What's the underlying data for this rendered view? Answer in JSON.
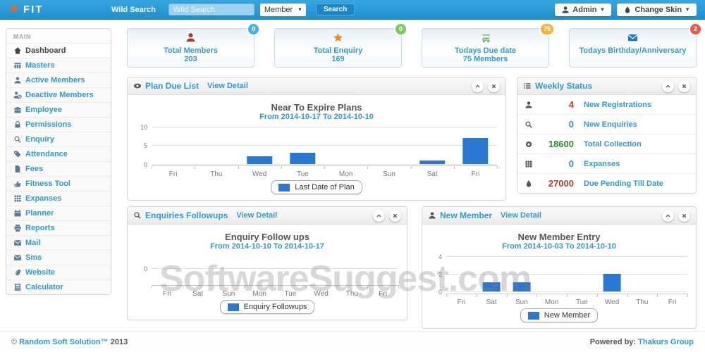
{
  "header": {
    "logo_text": "FIT",
    "search_label": "Wild Search",
    "search_placeholder": "Wild Search",
    "search_category": "Member",
    "search_button": "Search",
    "admin_label": "Admin",
    "change_skin_label": "Change Skin"
  },
  "sidebar": {
    "section": "MAIN",
    "items": [
      {
        "label": "Dashboard",
        "icon": "home-icon",
        "active": true
      },
      {
        "label": "Masters",
        "icon": "table-icon"
      },
      {
        "label": "Active Members",
        "icon": "user-icon"
      },
      {
        "label": "Deactive Members",
        "icon": "user-ban-icon"
      },
      {
        "label": "Employee",
        "icon": "briefcase-icon"
      },
      {
        "label": "Permissions",
        "icon": "lock-icon"
      },
      {
        "label": "Enquiry",
        "icon": "search-icon"
      },
      {
        "label": "Attendance",
        "icon": "tag-icon"
      },
      {
        "label": "Fees",
        "icon": "file-icon"
      },
      {
        "label": "Fitness Tool",
        "icon": "thumbs-up-icon"
      },
      {
        "label": "Expanses",
        "icon": "grid-icon"
      },
      {
        "label": "Planner",
        "icon": "calendar-icon"
      },
      {
        "label": "Reports",
        "icon": "printer-icon"
      },
      {
        "label": "Mail",
        "icon": "envelope-icon"
      },
      {
        "label": "Sms",
        "icon": "envelope-icon"
      },
      {
        "label": "Website",
        "icon": "leaf-icon"
      },
      {
        "label": "Calculator",
        "icon": "calculator-icon"
      }
    ]
  },
  "stats": [
    {
      "title": "Total Members",
      "value": "203",
      "badge": "0",
      "badge_color": "#45b2e4",
      "icon": "member-icon",
      "icon_color": "#a63a2e"
    },
    {
      "title": "Total Enquiry",
      "value": "169",
      "badge": "0",
      "badge_color": "#76cc58",
      "icon": "star-icon",
      "icon_color": "#f08a2c"
    },
    {
      "title": "Todays Due date",
      "value": "75 Members",
      "badge": "75",
      "badge_color": "#f3b13e",
      "icon": "cart-icon",
      "icon_color": "#3da23d"
    },
    {
      "title": "Todays Birthday/Anniversary",
      "value": "",
      "badge": "2",
      "badge_color": "#e25b4b",
      "icon": "envelope-icon",
      "icon_color": "#1d74d4"
    }
  ],
  "panels": {
    "plan_due": {
      "title": "Plan Due List",
      "link": "View Detail"
    },
    "weekly": {
      "title": "Weekly Status",
      "rows": [
        {
          "value": "4",
          "label": "New Registrations",
          "value_color": "#c0392b",
          "icon": "user-icon"
        },
        {
          "value": "0",
          "label": "New Enquiries",
          "value_color": "#3a87c8",
          "icon": "search-icon"
        },
        {
          "value": "18600",
          "label": "Total Collection",
          "value_color": "#2d8a2d",
          "icon": "cog-icon"
        },
        {
          "value": "0",
          "label": "Expanses",
          "value_color": "#3a87c8",
          "icon": "grid-icon"
        },
        {
          "value": "27000",
          "label": "Due Pending Till Date",
          "value_color": "#c0392b",
          "icon": "droplet-icon"
        }
      ]
    },
    "enquiries": {
      "title": "Enquiries Followups",
      "link": "View Detail"
    },
    "new_member": {
      "title": "New Member",
      "link": "View Detail"
    }
  },
  "chart_data": [
    {
      "id": "plan_due",
      "type": "bar",
      "title": "Near To Expire Plans",
      "subtitle": "From 2014-10-17 To 2014-10-10",
      "categories": [
        "Fri",
        "Thu",
        "Wed",
        "Tue",
        "Mon",
        "Sun",
        "Sat",
        "Fri"
      ],
      "values": [
        0,
        0,
        2,
        3,
        0,
        0,
        1,
        7
      ],
      "yticks": [
        0,
        5,
        10
      ],
      "ylim": [
        -0.4,
        10
      ],
      "legend": "Last Date of Plan",
      "legend_position": "bottom",
      "grid": true,
      "bar_color": "#2b78d3"
    },
    {
      "id": "enquiry_followups",
      "type": "bar",
      "title": "Enquiry Follow ups",
      "subtitle": "From 2014-10-10 To 2014-10-17",
      "categories": [
        "Fri",
        "Sat",
        "Sun",
        "Mon",
        "Tue",
        "Wed",
        "Thu",
        "Fri"
      ],
      "values": [
        0,
        0,
        0,
        0,
        0,
        0,
        0,
        0
      ],
      "yticks": [
        0
      ],
      "ylim": [
        -1,
        0.7
      ],
      "legend": "Enquiry Followups",
      "legend_position": "bottom",
      "grid": true,
      "bar_color": "#2b78d3"
    },
    {
      "id": "new_member",
      "type": "bar",
      "title": "New Member Entry",
      "subtitle": "From 2014-10-03 To 2014-10-10",
      "categories": [
        "Fri",
        "Sat",
        "Sun",
        "Mon",
        "Tue",
        "Wed",
        "Thu",
        "Fri"
      ],
      "values": [
        0,
        1,
        1,
        0,
        0,
        2,
        0,
        0
      ],
      "yticks": [
        0,
        2,
        4
      ],
      "ylim": [
        -0.25,
        4
      ],
      "legend": "New Member",
      "legend_position": "bottom",
      "grid": true,
      "bar_color": "#2b78d3"
    }
  ],
  "footer": {
    "copyright_symbol": "©",
    "company": "Random Soft Solution™",
    "year": "2013",
    "powered_label": "Powered by:",
    "powered_company": "Thakurs Group"
  },
  "watermark": "SoftwareSuggest.com",
  "colors": {
    "header_blue": "#2a9bd6",
    "accent_blue": "#2e9ad0",
    "bar_blue": "#2b78d3"
  }
}
